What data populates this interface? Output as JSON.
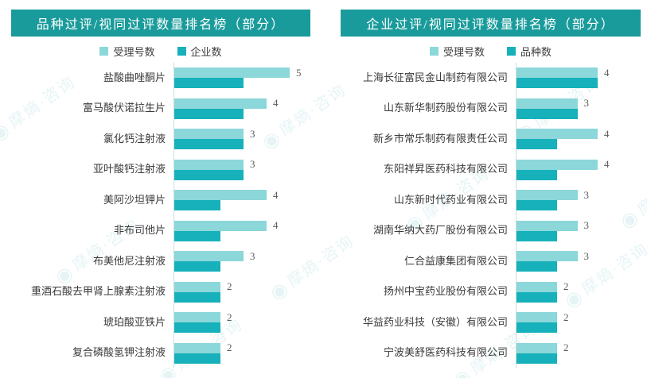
{
  "watermark": {
    "text": "摩熵·咨询"
  },
  "theme": {
    "header_bg": "#1a9b9b",
    "bar_light": "#8bd7da",
    "bar_dark": "#16b1ba",
    "axis_line": "#ccdedf",
    "value_color": "#5c5c5c"
  },
  "chart_data": [
    {
      "type": "bar",
      "orientation": "horizontal",
      "title": "品种过评/视同过评数量排名榜（部分）",
      "legend_position": "top",
      "grid": false,
      "xlim": [
        0,
        5
      ],
      "categories": [
        "盐酸曲唑酮片",
        "富马酸伏诺拉生片",
        "氯化钙注射液",
        "亚叶酸钙注射液",
        "美阿沙坦钾片",
        "非布司他片",
        "布美他尼注射液",
        "重酒石酸去甲肾上腺素注射液",
        "琥珀酸亚铁片",
        "复合磷酸氢钾注射液"
      ],
      "series": [
        {
          "name": "受理号数",
          "color": "#8bd7da",
          "values": [
            5,
            4,
            3,
            3,
            4,
            4,
            3,
            2,
            2,
            2
          ]
        },
        {
          "name": "企业数",
          "color": "#16b1ba",
          "values": [
            3,
            3,
            3,
            3,
            2,
            2,
            2,
            2,
            2,
            2
          ]
        }
      ]
    },
    {
      "type": "bar",
      "orientation": "horizontal",
      "title": "企业过评/视同过评数量排名榜（部分）",
      "legend_position": "top",
      "grid": false,
      "xlim": [
        0,
        4
      ],
      "categories": [
        "上海长征富民金山制药有限公司",
        "山东新华制药股份有限公司",
        "新乡市常乐制药有限责任公司",
        "东阳祥昇医药科技有限公司",
        "山东新时代药业有限公司",
        "湖南华纳大药厂股份有限公司",
        "仁合益康集团有限公司",
        "扬州中宝药业股份有限公司",
        "华益药业科技（安徽）有限公司",
        "宁波美舒医药科技有限公司"
      ],
      "series": [
        {
          "name": "受理号数",
          "color": "#8bd7da",
          "values": [
            4,
            3,
            4,
            4,
            3,
            3,
            3,
            2,
            2,
            2
          ]
        },
        {
          "name": "品种数",
          "color": "#16b1ba",
          "values": [
            4,
            3,
            2,
            2,
            2,
            2,
            2,
            2,
            2,
            2
          ]
        }
      ]
    }
  ]
}
